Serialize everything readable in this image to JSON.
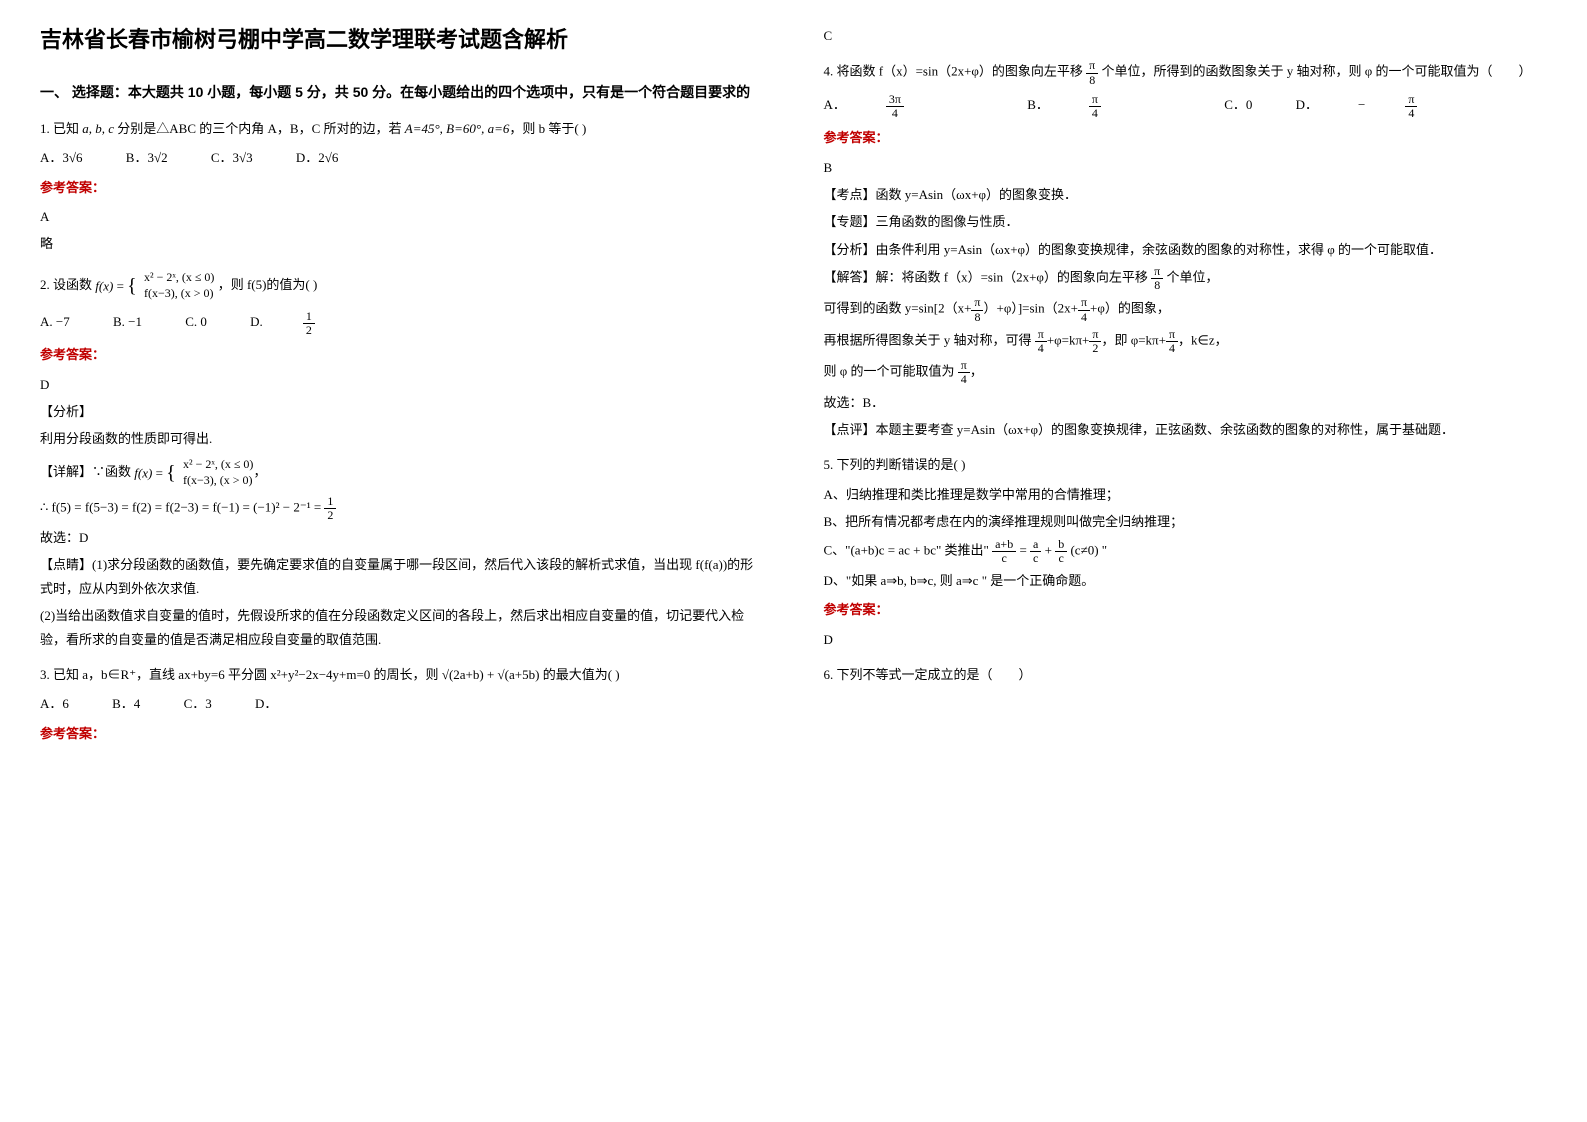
{
  "colors": {
    "accent": "#c00000",
    "text": "#000000",
    "bg": "#ffffff"
  },
  "title": "吉林省长春市榆树弓棚中学高二数学理联考试题含解析",
  "section1": "一、 选择题：本大题共 10 小题，每小题 5 分，共 50 分。在每小题给出的四个选项中，只有是一个符合题目要求的",
  "q1": {
    "stem_a": "1. 已知 ",
    "stem_b": " 分别是△ABC 的三个内角 A，B，C 所对的边，若 ",
    "stem_c": "，则 b 等于(   )",
    "vars": "a, b, c",
    "cond": "A=45°, B=60°, a=6",
    "opts": {
      "A": "A．3√6",
      "B": "B．3√2",
      "C": "C．3√3",
      "D": "D．2√6"
    },
    "ans_label": "参考答案：",
    "ans": "A",
    "note": "略"
  },
  "q2": {
    "stem_a": "2. 设函数 ",
    "stem_b": "，则 f(5)的值为(   )",
    "case1": "x² − 2ˣ, (x ≤ 0)",
    "case2": "f(x−3), (x > 0)",
    "opts": {
      "A": "A. −7",
      "B": "B. −1",
      "C": "C. 0",
      "D_pre": "D. ",
      "D_num": "1",
      "D_den": "2"
    },
    "ans_label": "参考答案：",
    "ans": "D",
    "h1": "【分析】",
    "p1": "利用分段函数的性质即可得出.",
    "h2_a": "【详解】∵函数 ",
    "case1b": "x² − 2ˣ, (x ≤ 0)",
    "case2b": "f(x−3), (x > 0)",
    "calc_a": "∴ f(5) = f(5−3) = f(2) = f(2−3) = f(−1) = (−1)² − 2⁻¹ = ",
    "calc_num": "1",
    "calc_den": "2",
    "p2": "故选：D",
    "p3": "【点睛】(1)求分段函数的函数值，要先确定要求值的自变量属于哪一段区间，然后代入该段的解析式求值，当出现 f(f(a))的形式时，应从内到外依次求值.",
    "p4": "(2)当给出函数值求自变量的值时，先假设所求的值在分段函数定义区间的各段上，然后求出相应自变量的值，切记要代入检验，看所求的自变量的值是否满足相应段自变量的取值范围."
  },
  "q3": {
    "stem_a": "3. 已知 a，b∈R⁺，直线 ax+by=6 平分圆 x²+y²−2x−4y+m=0 的周长，则 ",
    "expr": "√(2a+b) + √(a+5b)",
    "stem_b": " 的最大值为(    )",
    "opts": {
      "A": "A．6",
      "B": "B．4",
      "C": "C．3",
      "D": "D．"
    },
    "ans_label": "参考答案：",
    "ans": "C"
  },
  "q4": {
    "stem_a": "4. 将函数 f（x）=sin（2x+φ）的图象向左平移 ",
    "shift_num": "π",
    "shift_den": "8",
    "stem_b": " 个单位，所得到的函数图象关于 y 轴对称，则 φ 的一个可能取值为（　　）",
    "opts": {
      "A_pre": "A．",
      "A_num": "3π",
      "A_den": "4",
      "B_pre": "B．",
      "B_num": "π",
      "B_den": "4",
      "C": "C．0",
      "D_pre": "D．",
      "D_neg": "−",
      "D_num": "π",
      "D_den": "4"
    },
    "ans_label": "参考答案：",
    "ans": "B",
    "p1": "【考点】函数 y=Asin（ωx+φ）的图象变换．",
    "p2": "【专题】三角函数的图像与性质．",
    "p3": "【分析】由条件利用 y=Asin（ωx+φ）的图象变换规律，余弦函数的图象的对称性，求得 φ 的一个可能取值．",
    "p4_a": "【解答】解：将函数 f（x）=sin（2x+φ）的图象向左平移 ",
    "p4_num": "π",
    "p4_den": "8",
    "p4_b": " 个单位，",
    "p5_a": "可得到的函数 y=sin[2（x+",
    "p5_num1": "π",
    "p5_den1": "8",
    "p5_b": "）+φ）]=sin（2x+",
    "p5_num2": "π",
    "p5_den2": "4",
    "p5_c": "+φ）的图象，",
    "p6_a": "再根据所得图象关于 y 轴对称，可得 ",
    "p6_num1": "π",
    "p6_den1": "4",
    "p6_b": "+φ=kπ+",
    "p6_num2": "π",
    "p6_den2": "2",
    "p6_c": "，即 φ=kπ+",
    "p6_num3": "π",
    "p6_den3": "4",
    "p6_d": "，k∈z，",
    "p7_a": "则 φ 的一个可能取值为 ",
    "p7_num": "π",
    "p7_den": "4",
    "p7_b": "，",
    "p8": "故选：B．",
    "p9": "【点评】本题主要考查 y=Asin（ωx+φ）的图象变换规律，正弦函数、余弦函数的图象的对称性，属于基础题．"
  },
  "q5": {
    "stem": "5. 下列的判断错误的是(   )",
    "A": "A、归纳推理和类比推理是数学中常用的合情推理；",
    "B": "B、把所有情况都考虑在内的演绎推理规则叫做完全归纳推理；",
    "C_a": "C、\"(a+b)c = ac + bc\" 类推出\" ",
    "C_num1": "a+b",
    "C_den1": "c",
    "C_eq": " = ",
    "C_num2": "a",
    "C_den2": "c",
    "C_plus": " + ",
    "C_num3": "b",
    "C_den3": "c",
    "C_b": " (c≠0) \"",
    "D": "D、\"如果 a⇒b, b⇒c, 则 a⇒c \" 是一个正确命题。",
    "ans_label": "参考答案：",
    "ans": "D"
  },
  "q6": {
    "stem": "6. 下列不等式一定成立的是（　　）"
  }
}
